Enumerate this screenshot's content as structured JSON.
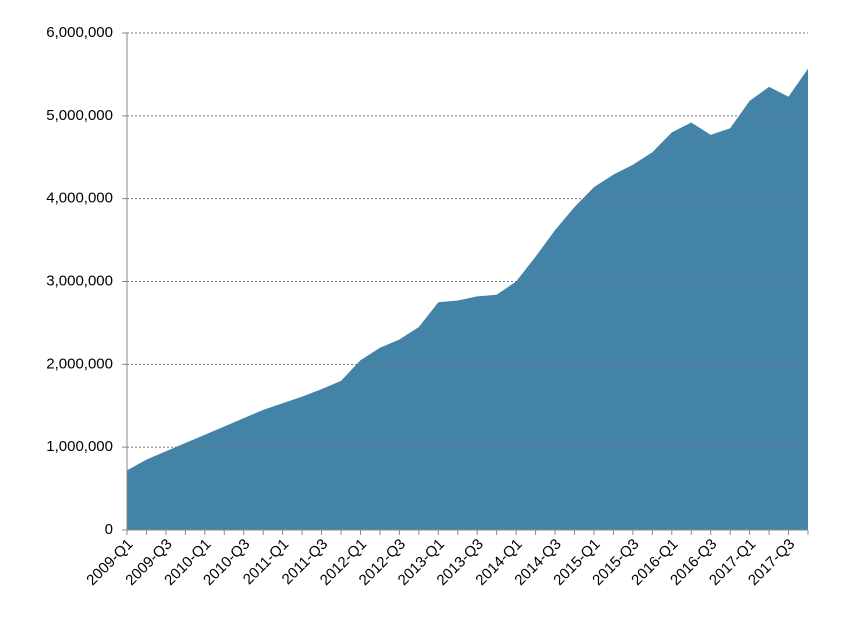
{
  "chart_data": {
    "type": "area",
    "categories": [
      "2009-Q1",
      null,
      "2009-Q3",
      null,
      "2010-Q1",
      null,
      "2010-Q3",
      null,
      "2011-Q1",
      null,
      "2011-Q3",
      null,
      "2012-Q1",
      null,
      "2012-Q3",
      null,
      "2013-Q1",
      null,
      "2013-Q3",
      null,
      "2014-Q1",
      null,
      "2014-Q3",
      null,
      "2015-Q1",
      null,
      "2015-Q3",
      null,
      "2016-Q1",
      null,
      "2016-Q3",
      null,
      "2017-Q1",
      null,
      "2017-Q3",
      null
    ],
    "values": [
      720000,
      850000,
      950000,
      1050000,
      1150000,
      1250000,
      1350000,
      1450000,
      1530000,
      1610000,
      1700000,
      1800000,
      2050000,
      2200000,
      2300000,
      2450000,
      2750000,
      2770000,
      2820000,
      2840000,
      3000000,
      3300000,
      3620000,
      3900000,
      4140000,
      4290000,
      4410000,
      4560000,
      4800000,
      4920000,
      4770000,
      4850000,
      5180000,
      5350000,
      5230000,
      5570000
    ],
    "color": "#4483a8",
    "ylim": [
      0,
      6000000
    ],
    "yticks": [
      0,
      {
        "value": 1000000,
        "label": "1,000,000"
      },
      {
        "value": 2000000,
        "label": "2,000,000"
      },
      {
        "value": 3000000,
        "label": "3,000,000"
      },
      {
        "value": 4000000,
        "label": "4,000,000"
      },
      {
        "value": 5000000,
        "label": "5,000,000"
      },
      {
        "value": 6000000,
        "label": "6,000,000"
      }
    ],
    "grid": true
  }
}
